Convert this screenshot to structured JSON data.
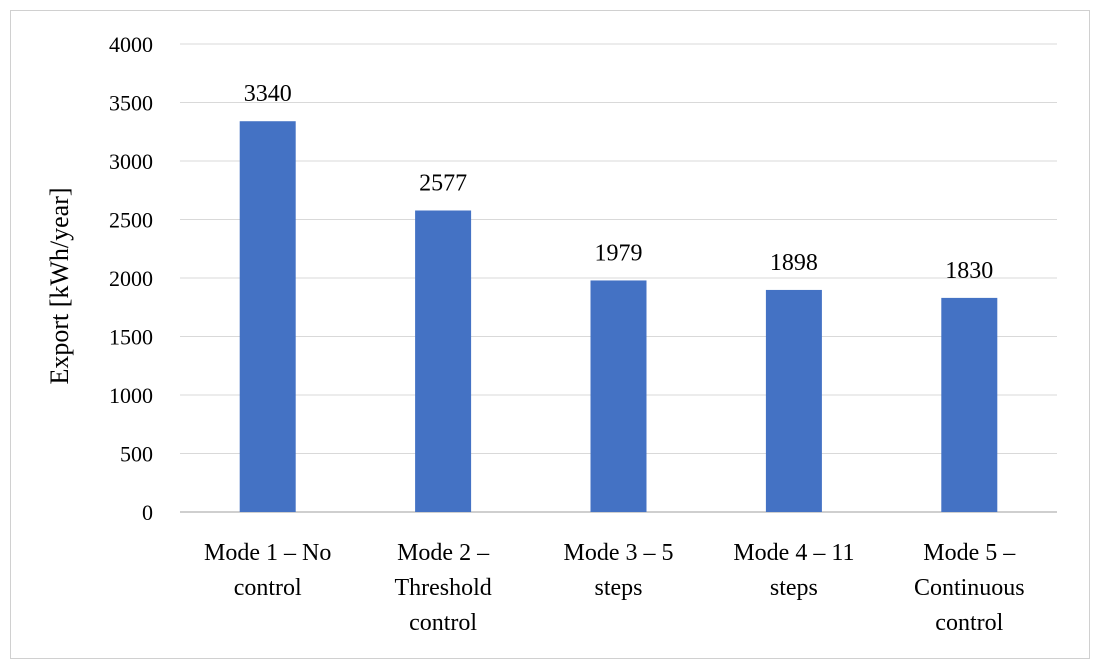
{
  "chart_data": {
    "type": "bar",
    "title": "",
    "xlabel": "",
    "ylabel": "Export [kWh/year]",
    "categories": [
      "Mode 1 – No control",
      "Mode 2 – Threshold control",
      "Mode 3 – 5 steps",
      "Mode 4 – 11 steps",
      "Mode 5 – Continuous control"
    ],
    "category_lines": [
      [
        "Mode 1 – No",
        "control"
      ],
      [
        "Mode 2 –",
        "Threshold",
        "control"
      ],
      [
        "Mode 3 – 5",
        "steps"
      ],
      [
        "Mode 4 – 11",
        "steps"
      ],
      [
        "Mode 5 –",
        "Continuous",
        "control"
      ]
    ],
    "values": [
      3340,
      2577,
      1979,
      1898,
      1830
    ],
    "data_labels": [
      "3340",
      "2577",
      "1979",
      "1898",
      "1830"
    ],
    "ylim": [
      0,
      4000
    ],
    "yticks": [
      0,
      500,
      1000,
      1500,
      2000,
      2500,
      3000,
      3500,
      4000
    ],
    "grid": true,
    "legend": "none",
    "colors": {
      "bar": "#4472C4",
      "grid": "#d9d9d9",
      "axis": "#bfbfbf",
      "border": "#d0d0d0"
    }
  }
}
